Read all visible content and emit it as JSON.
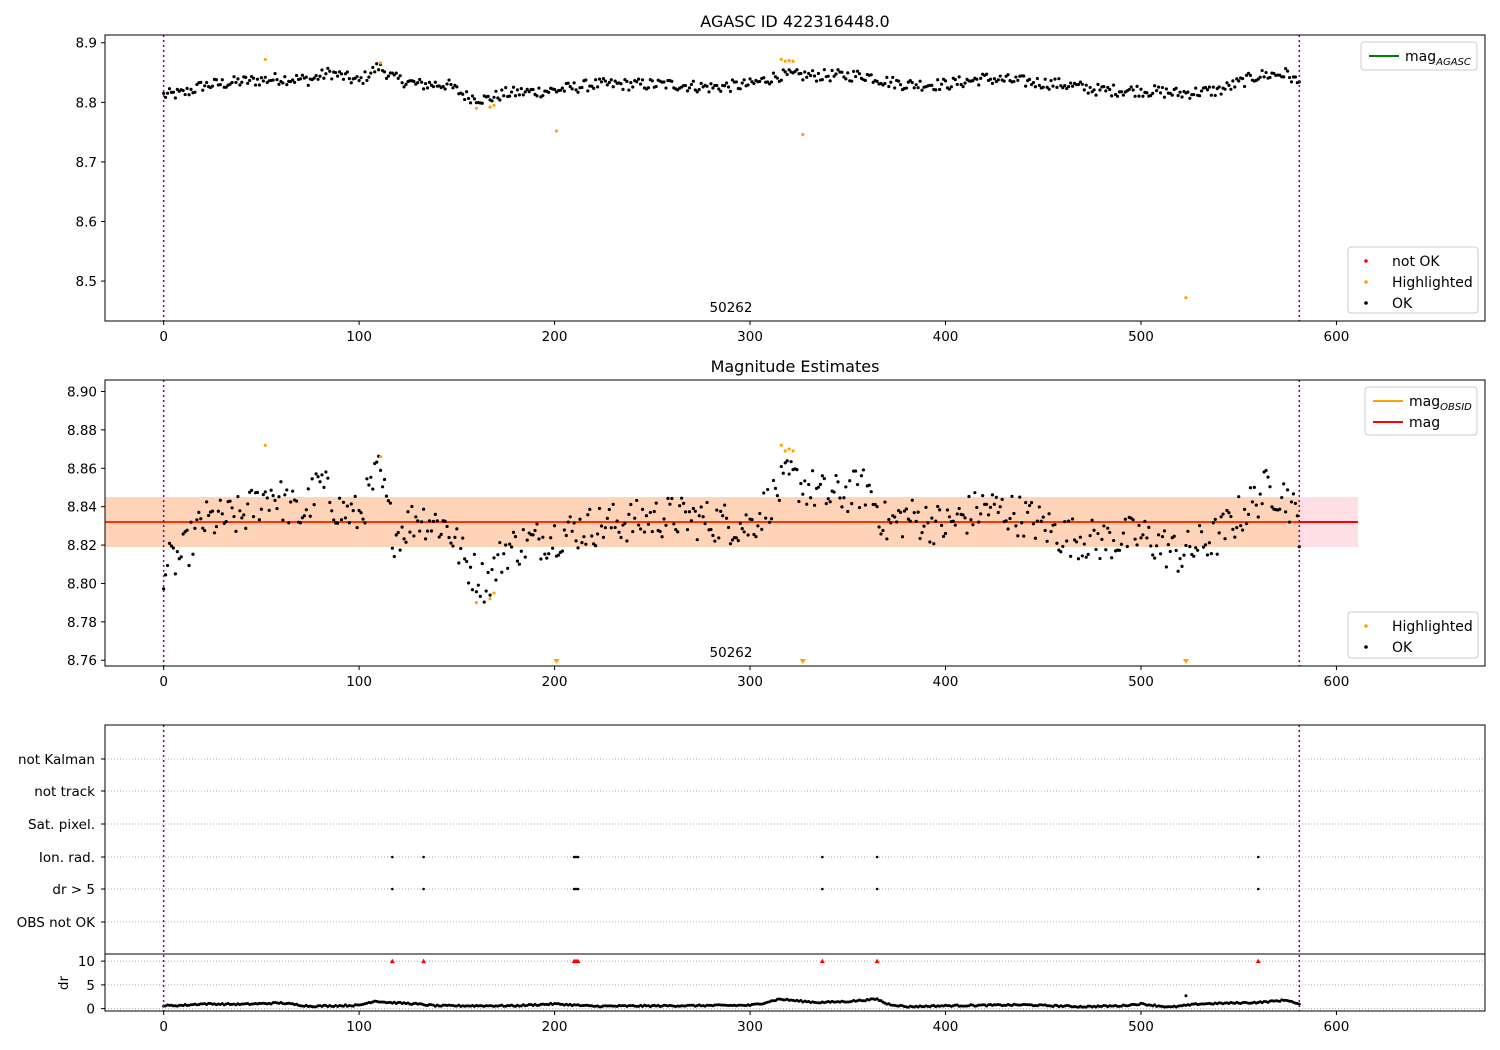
{
  "chart_data": [
    {
      "type": "scatter",
      "title": "AGASC ID 422316448.0",
      "annotation": "50262",
      "xlim": [
        -30,
        676
      ],
      "ylim": [
        8.433,
        8.913
      ],
      "xticks": [
        0,
        100,
        200,
        300,
        400,
        500,
        600
      ],
      "yticks": [
        8.5,
        8.6,
        8.7,
        8.8,
        8.9
      ],
      "vlines": [
        0,
        581
      ],
      "legend_upper": {
        "placement": "top-right",
        "entries": [
          {
            "label": "mag",
            "subscript": "AGASC",
            "color": "#008000",
            "kind": "line"
          }
        ]
      },
      "legend_lower": {
        "placement": "bottom-right",
        "entries": [
          {
            "label": "not OK",
            "color": "#ff0000",
            "kind": "dot"
          },
          {
            "label": "Highlighted",
            "color": "#ffa500",
            "kind": "dot"
          },
          {
            "label": "OK",
            "color": "#000000",
            "kind": "dot"
          }
        ]
      },
      "series": [
        {
          "name": "OK",
          "color": "#000000",
          "trend": [
            [
              0,
              8.812
            ],
            [
              10,
              8.815
            ],
            [
              20,
              8.828
            ],
            [
              40,
              8.835
            ],
            [
              60,
              8.84
            ],
            [
              75,
              8.838
            ],
            [
              85,
              8.85
            ],
            [
              100,
              8.835
            ],
            [
              110,
              8.86
            ],
            [
              118,
              8.84
            ],
            [
              130,
              8.83
            ],
            [
              145,
              8.83
            ],
            [
              155,
              8.81
            ],
            [
              165,
              8.805
            ],
            [
              175,
              8.815
            ],
            [
              200,
              8.82
            ],
            [
              220,
              8.83
            ],
            [
              260,
              8.83
            ],
            [
              280,
              8.825
            ],
            [
              300,
              8.83
            ],
            [
              315,
              8.845
            ],
            [
              330,
              8.845
            ],
            [
              360,
              8.845
            ],
            [
              370,
              8.835
            ],
            [
              380,
              8.83
            ],
            [
              400,
              8.83
            ],
            [
              420,
              8.84
            ],
            [
              440,
              8.835
            ],
            [
              460,
              8.83
            ],
            [
              480,
              8.82
            ],
            [
              500,
              8.82
            ],
            [
              520,
              8.815
            ],
            [
              540,
              8.82
            ],
            [
              560,
              8.845
            ],
            [
              575,
              8.848
            ],
            [
              581,
              8.83
            ]
          ]
        },
        {
          "name": "Highlighted",
          "color": "#ffa500",
          "points": [
            [
              52,
              8.872
            ],
            [
              111,
              8.866
            ],
            [
              160,
              8.79
            ],
            [
              167,
              8.792
            ],
            [
              169,
              8.795
            ],
            [
              201,
              8.752
            ],
            [
              316,
              8.872
            ],
            [
              318,
              8.869
            ],
            [
              320,
              8.87
            ],
            [
              322,
              8.869
            ],
            [
              327,
              8.746
            ],
            [
              523,
              8.472
            ]
          ]
        }
      ]
    },
    {
      "type": "scatter",
      "title": "Magnitude Estimates",
      "annotation": "50262",
      "xlim": [
        -30,
        676
      ],
      "ylim": [
        8.757,
        8.906
      ],
      "xticks": [
        0,
        100,
        200,
        300,
        400,
        500,
        600
      ],
      "yticks": [
        8.76,
        8.78,
        8.8,
        8.82,
        8.84,
        8.86,
        8.88,
        8.9
      ],
      "vlines": [
        0,
        581
      ],
      "mag": 8.832,
      "band_pink": [
        8.819,
        8.845
      ],
      "band_orange": [
        8.819,
        8.845
      ],
      "band_x": [
        -30,
        611
      ],
      "legend_upper": {
        "placement": "top-right",
        "entries": [
          {
            "label": "mag",
            "subscript": "OBSID",
            "color": "#ffa500",
            "kind": "line"
          },
          {
            "label": "mag",
            "subscript": "",
            "color": "#ff0000",
            "kind": "line"
          }
        ]
      },
      "legend_lower": {
        "placement": "bottom-right",
        "entries": [
          {
            "label": "Highlighted",
            "color": "#ffa500",
            "kind": "dot"
          },
          {
            "label": "OK",
            "color": "#000000",
            "kind": "dot"
          }
        ]
      },
      "series": [
        {
          "name": "OK",
          "color": "#000000",
          "trend": [
            [
              0,
              8.808
            ],
            [
              10,
              8.815
            ],
            [
              20,
              8.832
            ],
            [
              40,
              8.835
            ],
            [
              55,
              8.848
            ],
            [
              70,
              8.835
            ],
            [
              80,
              8.852
            ],
            [
              90,
              8.838
            ],
            [
              100,
              8.835
            ],
            [
              110,
              8.858
            ],
            [
              118,
              8.825
            ],
            [
              130,
              8.835
            ],
            [
              145,
              8.83
            ],
            [
              155,
              8.81
            ],
            [
              165,
              8.8
            ],
            [
              175,
              8.818
            ],
            [
              200,
              8.825
            ],
            [
              220,
              8.83
            ],
            [
              260,
              8.835
            ],
            [
              300,
              8.83
            ],
            [
              320,
              8.855
            ],
            [
              340,
              8.845
            ],
            [
              360,
              8.85
            ],
            [
              370,
              8.83
            ],
            [
              380,
              8.835
            ],
            [
              400,
              8.83
            ],
            [
              420,
              8.84
            ],
            [
              440,
              8.835
            ],
            [
              460,
              8.825
            ],
            [
              480,
              8.822
            ],
            [
              500,
              8.825
            ],
            [
              520,
              8.815
            ],
            [
              540,
              8.825
            ],
            [
              555,
              8.84
            ],
            [
              565,
              8.85
            ],
            [
              575,
              8.845
            ],
            [
              581,
              8.83
            ]
          ]
        },
        {
          "name": "Highlighted",
          "color": "#ffa500",
          "points": [
            [
              52,
              8.872
            ],
            [
              111,
              8.866
            ],
            [
              160,
              8.79
            ],
            [
              167,
              8.792
            ],
            [
              169,
              8.795
            ],
            [
              316,
              8.872
            ],
            [
              318,
              8.869
            ],
            [
              320,
              8.87
            ],
            [
              322,
              8.869
            ]
          ]
        }
      ],
      "clipped_markers": [
        201,
        327,
        523
      ]
    },
    {
      "type": "scatter",
      "xlim": [
        -30,
        676
      ],
      "xticks": [
        0,
        100,
        200,
        300,
        400,
        500,
        600
      ],
      "vlines": [
        0,
        581
      ],
      "flag_rows": [
        "not Kalman",
        "not track",
        "Sat. pixel.",
        "Ion. rad.",
        "dr > 5",
        "OBS not OK"
      ],
      "flag_events": {
        "Ion. rad.": [
          117,
          133,
          210,
          211,
          212,
          337,
          365,
          560
        ],
        "dr > 5": [
          117,
          133,
          210,
          211,
          212,
          337,
          365,
          560
        ]
      },
      "dr_panel": {
        "ylabel": "dr",
        "ylim": [
          -0.5,
          11.5
        ],
        "yticks": [
          0,
          5,
          10
        ],
        "threshold": 10,
        "red_markers": [
          117,
          133,
          210,
          211,
          212,
          337,
          365,
          560
        ],
        "trend": [
          [
            0,
            0.6
          ],
          [
            10,
            0.7
          ],
          [
            20,
            1.0
          ],
          [
            40,
            0.9
          ],
          [
            60,
            1.2
          ],
          [
            75,
            0.5
          ],
          [
            100,
            0.7
          ],
          [
            108,
            1.6
          ],
          [
            115,
            1.3
          ],
          [
            125,
            1.1
          ],
          [
            140,
            0.6
          ],
          [
            180,
            0.6
          ],
          [
            200,
            1.0
          ],
          [
            220,
            0.5
          ],
          [
            260,
            0.6
          ],
          [
            300,
            0.7
          ],
          [
            305,
            1.0
          ],
          [
            315,
            2.0
          ],
          [
            325,
            1.6
          ],
          [
            335,
            1.3
          ],
          [
            350,
            1.5
          ],
          [
            365,
            2.0
          ],
          [
            370,
            1.0
          ],
          [
            380,
            0.4
          ],
          [
            400,
            0.6
          ],
          [
            440,
            0.8
          ],
          [
            470,
            0.4
          ],
          [
            490,
            0.6
          ],
          [
            500,
            1.0
          ],
          [
            515,
            0.3
          ],
          [
            530,
            1.0
          ],
          [
            560,
            1.3
          ],
          [
            575,
            1.8
          ],
          [
            581,
            0.8
          ]
        ],
        "outlier": [
          523,
          2.7
        ]
      }
    }
  ]
}
